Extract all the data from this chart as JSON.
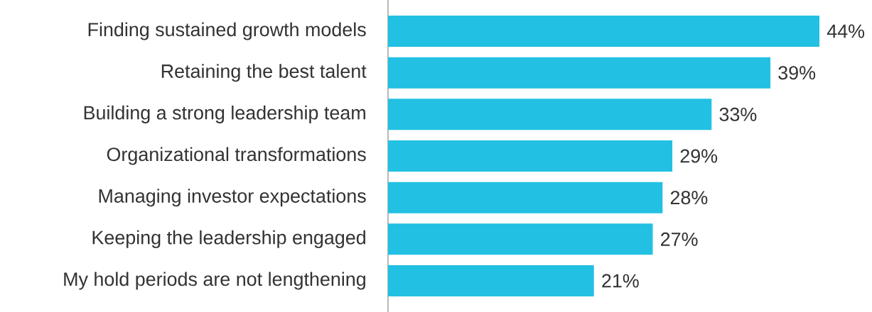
{
  "chart_data": {
    "type": "bar",
    "orientation": "horizontal",
    "categories": [
      "Finding sustained growth models",
      "Retaining the best talent",
      "Building a strong leadership team",
      "Organizational transformations",
      "Managing investor expectations",
      "Keeping the leadership engaged",
      "My hold periods are not lengthening"
    ],
    "values": [
      44,
      39,
      33,
      29,
      28,
      27,
      21
    ],
    "color": "#22c0e3",
    "value_labels": [
      "44%",
      "39%",
      "33%",
      "29%",
      "28%",
      "27%",
      "21%"
    ]
  }
}
